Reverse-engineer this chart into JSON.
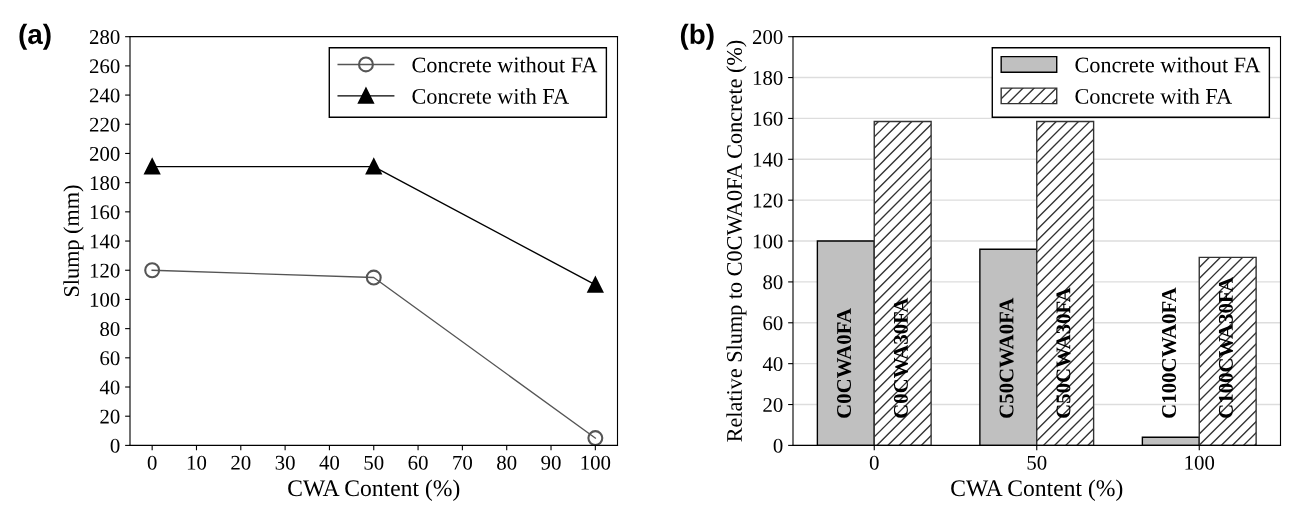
{
  "chart_data": [
    {
      "type": "line",
      "title": "(a)",
      "xlabel": "CWA Content (%)",
      "ylabel": "Slump (mm)",
      "x": [
        0,
        50,
        100
      ],
      "series": [
        {
          "name": "Concrete without FA",
          "color": "#555555",
          "marker": "circle",
          "values": [
            120,
            115,
            5
          ]
        },
        {
          "name": "Concrete with FA",
          "color": "#000000",
          "marker": "triangle",
          "values": [
            191,
            191,
            110
          ]
        }
      ],
      "xlim": [
        -5,
        105
      ],
      "xticks": [
        0,
        10,
        20,
        30,
        40,
        50,
        60,
        70,
        80,
        90,
        100
      ],
      "ylim": [
        0,
        280
      ],
      "yticks": [
        0,
        20,
        40,
        60,
        80,
        100,
        120,
        140,
        160,
        180,
        200,
        220,
        240,
        260,
        280
      ],
      "grid": false,
      "legend": "top right"
    },
    {
      "type": "bar",
      "title": "(b)",
      "xlabel": "CWA Content (%)",
      "ylabel": "Relative Slump to C0CWA0FA Concrete (%)",
      "categories": [
        "0",
        "50",
        "100"
      ],
      "series": [
        {
          "name": "Concrete without FA",
          "color": "#c0c0c0",
          "values": [
            100,
            96,
            4
          ]
        },
        {
          "name": "Concrete with FA",
          "color": "#333333",
          "values": [
            158.5,
            158.5,
            92
          ]
        }
      ],
      "annotations": [
        "C0CWA0FA",
        "C0CWA30FA",
        "C50CWA0FA",
        "C50CWA30FA",
        "C100CWA0FA",
        "C100CWA30FA"
      ],
      "ylim": [
        0,
        200
      ],
      "yticks": [
        0,
        20,
        40,
        60,
        80,
        100,
        120,
        140,
        160,
        180,
        200
      ],
      "grid": "y",
      "legend": "top right"
    }
  ]
}
